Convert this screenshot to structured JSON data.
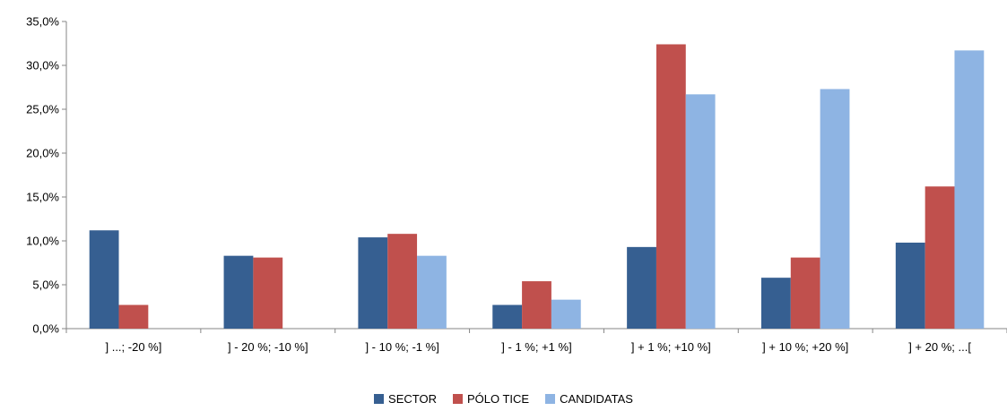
{
  "chart_data": {
    "type": "bar",
    "title": "",
    "xlabel": "",
    "ylabel": "",
    "ylim": [
      0,
      35
    ],
    "yticks": [
      "0,0%",
      "5,0%",
      "10,0%",
      "15,0%",
      "20,0%",
      "25,0%",
      "30,0%",
      "35,0%"
    ],
    "categories": [
      "] ...; -20 %]",
      "] - 20 %; -10 %]",
      "] - 10 %; -1 %]",
      "] - 1 %; +1 %]",
      "] + 1 %; +10 %]",
      "] + 10 %; +20 %]",
      "] + 20 %; ...["
    ],
    "series": [
      {
        "name": "SECTOR",
        "color": "#365F91",
        "values": [
          11.2,
          8.3,
          10.4,
          2.7,
          9.3,
          5.8,
          9.8
        ]
      },
      {
        "name": "PÓLO TICE",
        "color": "#C0504D",
        "values": [
          2.7,
          8.1,
          10.8,
          5.4,
          32.4,
          8.1,
          16.2
        ]
      },
      {
        "name": "CANDIDATAS",
        "color": "#8EB4E3",
        "values": [
          0,
          0,
          8.3,
          3.3,
          26.7,
          27.3,
          31.7
        ]
      }
    ],
    "grid": false,
    "legend_position": "bottom"
  }
}
